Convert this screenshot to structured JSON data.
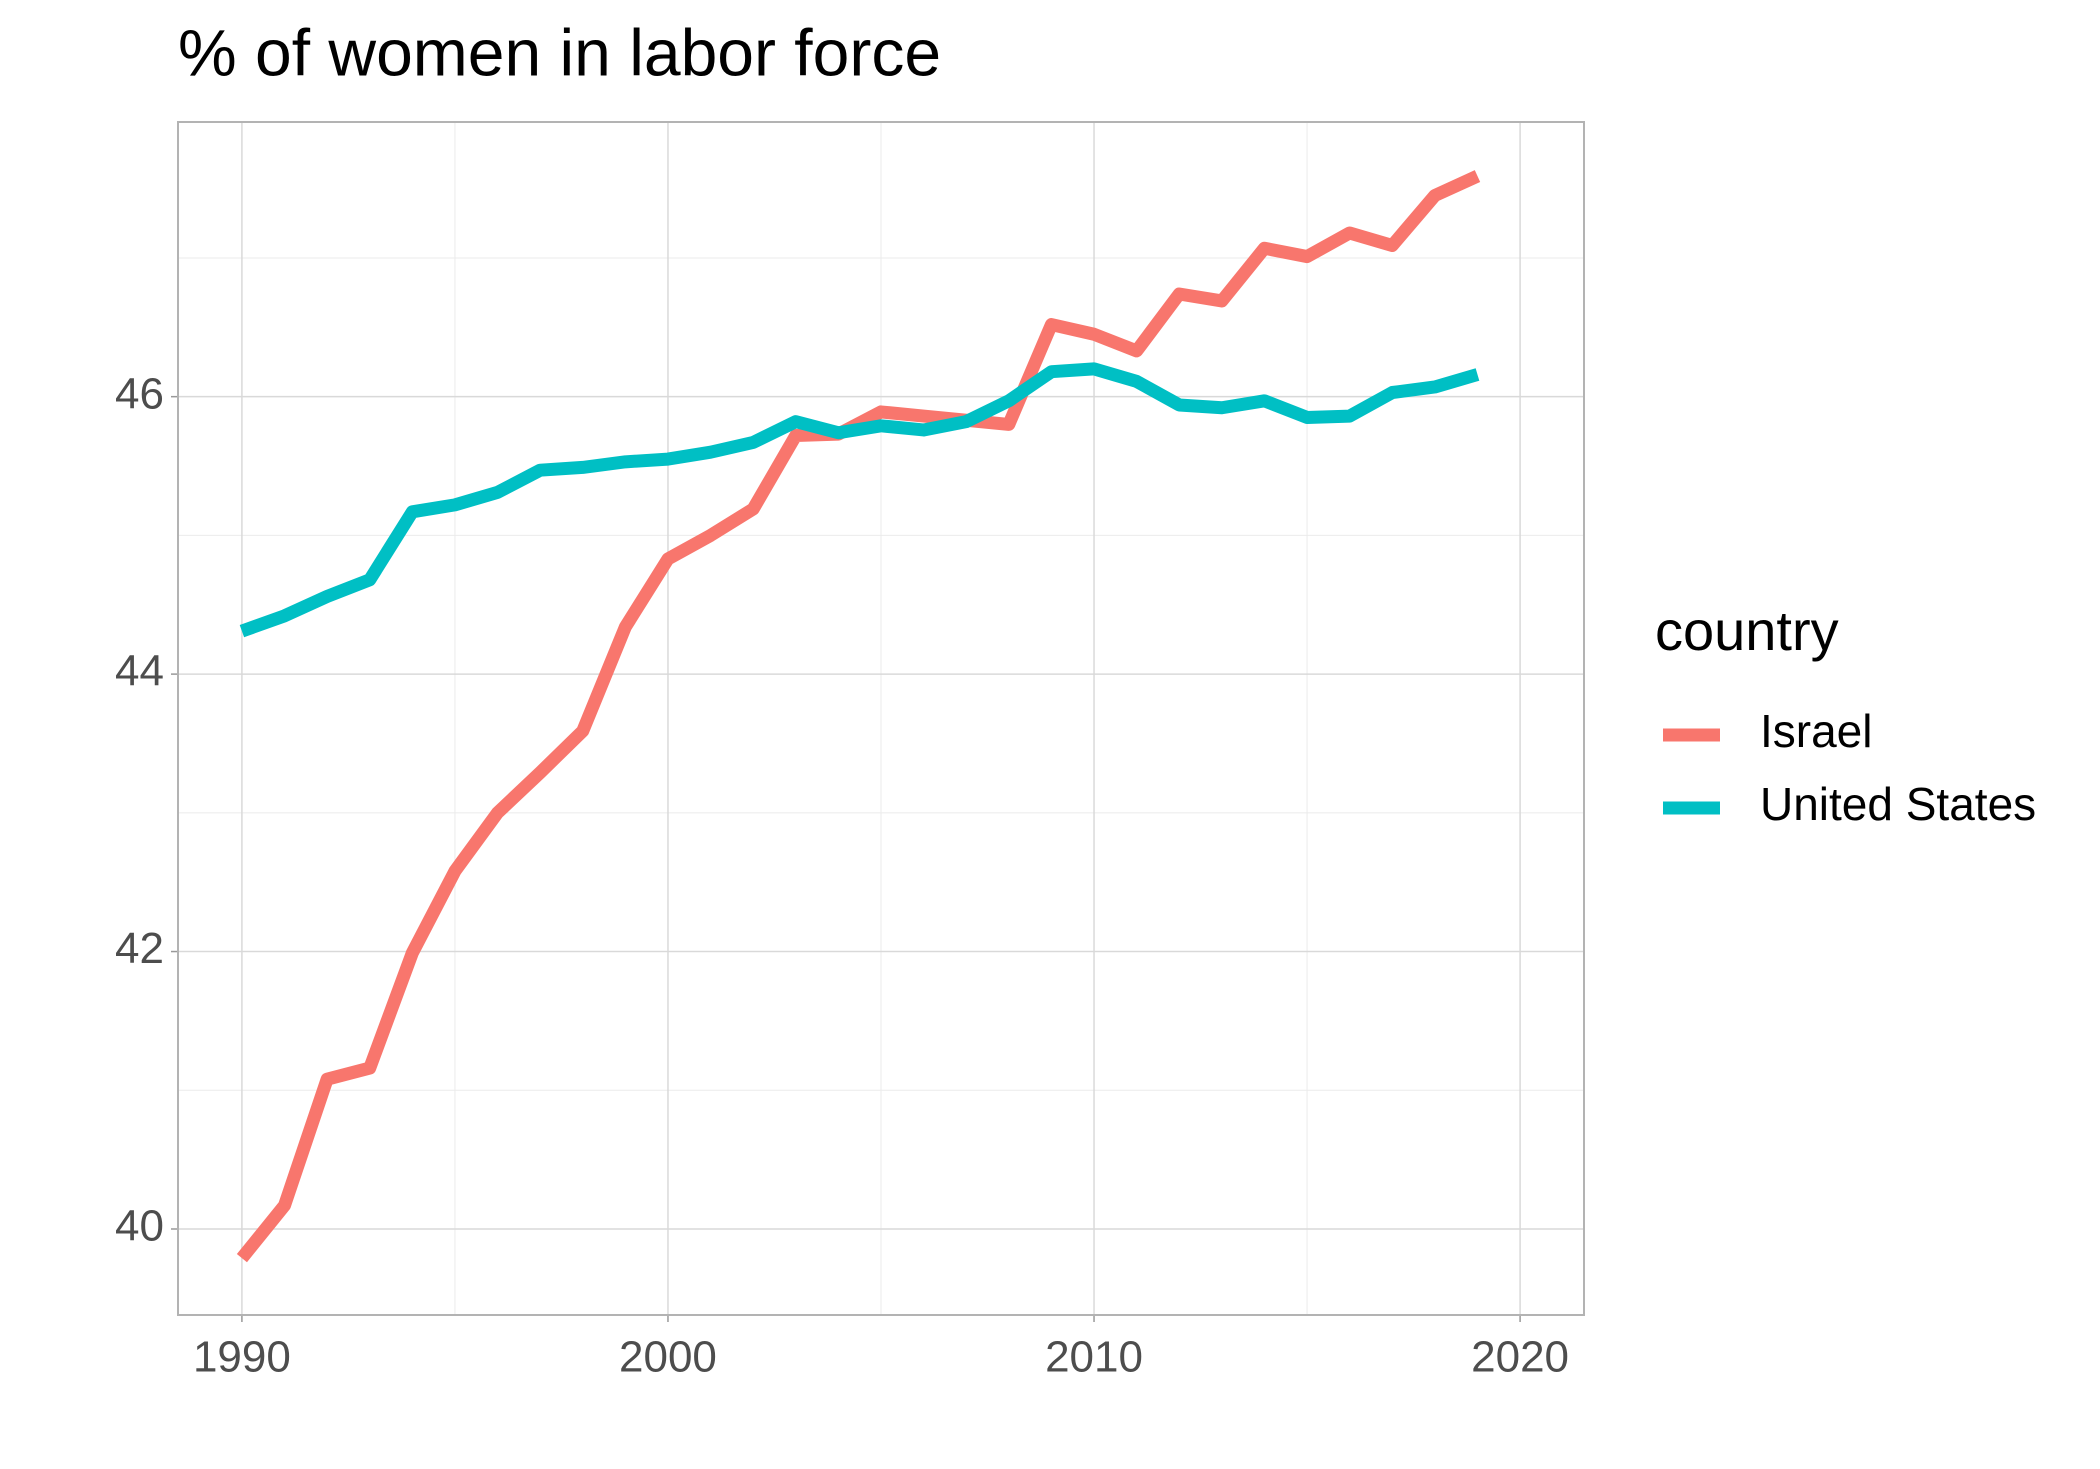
{
  "chart_data": {
    "type": "line",
    "title": "% of women in labor force",
    "x": [
      1990,
      1991,
      1992,
      1993,
      1994,
      1995,
      1996,
      1997,
      1998,
      1999,
      2000,
      2001,
      2002,
      2003,
      2004,
      2005,
      2006,
      2007,
      2008,
      2009,
      2010,
      2011,
      2012,
      2013,
      2014,
      2015,
      2016,
      2017,
      2018,
      2019
    ],
    "series": [
      {
        "name": "Israel",
        "color": "#f8766d",
        "values": [
          39.79,
          40.17,
          41.08,
          41.16,
          41.99,
          42.58,
          43.0,
          43.29,
          43.59,
          44.34,
          44.83,
          45.0,
          45.19,
          45.72,
          45.73,
          45.89,
          45.86,
          45.83,
          45.8,
          46.52,
          46.45,
          46.33,
          46.74,
          46.69,
          47.07,
          47.01,
          47.18,
          47.09,
          47.45,
          47.59
        ]
      },
      {
        "name": "United States",
        "color": "#00bfc4",
        "values": [
          44.31,
          44.42,
          44.56,
          44.68,
          45.17,
          45.22,
          45.31,
          45.47,
          45.49,
          45.53,
          45.55,
          45.6,
          45.67,
          45.82,
          45.74,
          45.79,
          45.76,
          45.82,
          45.97,
          46.18,
          46.2,
          46.11,
          45.94,
          45.92,
          45.97,
          45.85,
          45.86,
          46.03,
          46.07,
          46.16
        ]
      }
    ],
    "legend_title": "country",
    "legend": "right",
    "xlim": [
      1988.5,
      2021.5
    ],
    "xticks": [
      1990,
      2000,
      2010,
      2020
    ],
    "xticks_minor": [
      1995,
      2005,
      2015
    ],
    "ylim": [
      39.38,
      47.98
    ],
    "yticks": [
      40,
      42,
      44,
      46
    ],
    "yticks_minor": [
      41,
      43,
      45,
      47
    ],
    "grid": true
  }
}
